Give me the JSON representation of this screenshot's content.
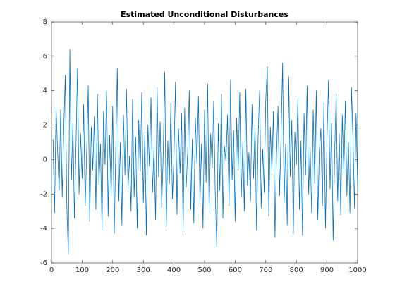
{
  "chart_data": {
    "type": "line",
    "title": "Estimated Unconditional Disturbances",
    "x": [
      5,
      10,
      15,
      20,
      25,
      30,
      35,
      40,
      45,
      50,
      55,
      60,
      65,
      70,
      75,
      80,
      85,
      90,
      95,
      100,
      105,
      110,
      115,
      120,
      125,
      130,
      135,
      140,
      145,
      150,
      155,
      160,
      165,
      170,
      175,
      180,
      185,
      190,
      195,
      200,
      205,
      210,
      215,
      220,
      225,
      230,
      235,
      240,
      245,
      250,
      255,
      260,
      265,
      270,
      275,
      280,
      285,
      290,
      295,
      300,
      305,
      310,
      315,
      320,
      325,
      330,
      335,
      340,
      345,
      350,
      355,
      360,
      365,
      370,
      375,
      380,
      385,
      390,
      395,
      400,
      405,
      410,
      415,
      420,
      425,
      430,
      435,
      440,
      445,
      450,
      455,
      460,
      465,
      470,
      475,
      480,
      485,
      490,
      495,
      500,
      505,
      510,
      515,
      520,
      525,
      530,
      535,
      540,
      545,
      550,
      555,
      560,
      565,
      570,
      575,
      580,
      585,
      590,
      595,
      600,
      605,
      610,
      615,
      620,
      625,
      630,
      635,
      640,
      645,
      650,
      655,
      660,
      665,
      670,
      675,
      680,
      685,
      690,
      695,
      700,
      705,
      710,
      715,
      720,
      725,
      730,
      735,
      740,
      745,
      750,
      755,
      760,
      765,
      770,
      775,
      780,
      785,
      790,
      795,
      800,
      805,
      810,
      815,
      820,
      825,
      830,
      835,
      840,
      845,
      850,
      855,
      860,
      865,
      870,
      875,
      880,
      885,
      890,
      895,
      900,
      905,
      910,
      915,
      920,
      925,
      930,
      935,
      940,
      945,
      950,
      955,
      960,
      965,
      970,
      975,
      980,
      985,
      990,
      995,
      1000
    ],
    "series": [
      {
        "color": "#0072bd",
        "values": [
          1.2,
          -3.1,
          3.0,
          0.5,
          -1.8,
          2.9,
          -2.2,
          1.7,
          4.9,
          -2.6,
          -5.5,
          6.4,
          -1.2,
          2.1,
          -3.4,
          0.8,
          5.3,
          -2.0,
          1.5,
          -1.1,
          3.2,
          -2.7,
          0.4,
          4.3,
          -3.6,
          1.9,
          -0.6,
          2.5,
          -2.9,
          3.8,
          -1.5,
          0.9,
          -4.1,
          2.8,
          -0.3,
          4.0,
          -3.3,
          1.4,
          -2.1,
          3.1,
          -4.3,
          0.6,
          5.3,
          -2.4,
          1.0,
          -3.8,
          2.6,
          -0.9,
          4.1,
          -1.7,
          0.2,
          -3.0,
          3.5,
          -2.2,
          1.3,
          -4.0,
          2.3,
          -0.7,
          3.9,
          -2.5,
          1.6,
          -4.4,
          2.0,
          -0.4,
          3.6,
          -1.9,
          0.7,
          -3.5,
          4.2,
          -1.0,
          2.2,
          -2.8,
          0.3,
          5.1,
          -3.9,
          1.1,
          -1.4,
          3.3,
          -2.3,
          0.1,
          4.5,
          -3.2,
          1.8,
          -0.8,
          2.7,
          -4.2,
          3.0,
          -1.6,
          0.5,
          4.0,
          -2.9,
          1.2,
          -3.7,
          2.4,
          -0.2,
          3.7,
          -2.6,
          0.9,
          -4.0,
          2.9,
          -1.3,
          4.4,
          -3.1,
          1.5,
          -0.5,
          3.4,
          -2.0,
          -5.1,
          2.1,
          -1.8,
          3.8,
          -3.4,
          0.8,
          -0.1,
          2.6,
          -2.7,
          4.6,
          -1.2,
          1.7,
          -3.6,
          2.4,
          -0.6,
          3.9,
          -2.2,
          1.0,
          -3.0,
          4.1,
          -1.5,
          0.4,
          -2.4,
          3.2,
          -1.1,
          2.0,
          -4.1,
          1.3,
          4.0,
          -2.8,
          0.6,
          -1.9,
          3.5,
          5.4,
          -3.3,
          1.9,
          -0.7,
          2.8,
          -4.5,
          0.2,
          3.1,
          -2.1,
          1.4,
          5.6,
          -2.5,
          0.9,
          -3.8,
          4.8,
          -1.0,
          2.3,
          -4.3,
          1.6,
          -0.3,
          3.6,
          -2.9,
          1.1,
          -4.4,
          2.7,
          -0.9,
          4.3,
          -2.0,
          0.7,
          -3.1,
          2.9,
          -1.4,
          4.0,
          -3.5,
          0.5,
          1.8,
          -2.7,
          3.3,
          -4.0,
          1.2,
          4.6,
          -1.7,
          2.1,
          -4.7,
          0.3,
          3.8,
          -2.4,
          1.5,
          -3.2,
          2.6,
          -0.8,
          3.4,
          -2.1,
          1.0,
          -3.1,
          4.2,
          1.1,
          -2.8,
          2.7,
          -1.5
        ]
      }
    ],
    "xlim": [
      0,
      1000
    ],
    "xticks": [
      0,
      100,
      200,
      300,
      400,
      500,
      600,
      700,
      800,
      900,
      1000
    ],
    "ylim": [
      -6,
      8
    ],
    "yticks": [
      -6,
      -4,
      -2,
      0,
      2,
      4,
      6,
      8
    ],
    "grid": false
  }
}
